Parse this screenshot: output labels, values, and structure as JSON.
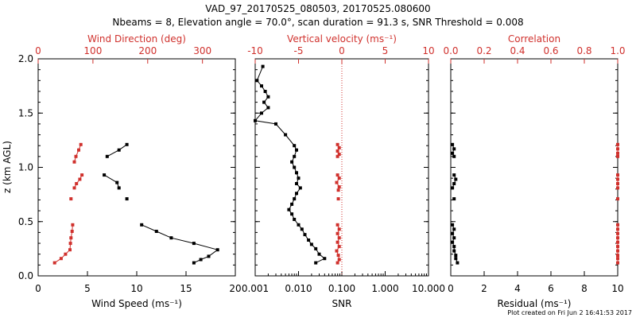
{
  "header": {
    "title": "VAD_97_20170525_080503, 20170525.080600",
    "subtitle": "Nbeams = 8, Elevation angle = 70.0°, scan duration = 91.3 s, SNR Threshold = 0.008"
  },
  "footer": {
    "plot_created": "Plot created on Fri Jun  2 16:41:53 2017"
  },
  "colors": {
    "black": "#000000",
    "red": "#d0312d"
  },
  "chart_data": [
    {
      "type": "line",
      "panel": "wind",
      "ylabel": "z (km AGL)",
      "ylim": [
        0,
        2
      ],
      "yticks": [
        "0.0",
        "0.5",
        "1.0",
        "1.5",
        "2.0"
      ],
      "xlabel": "Wind Speed (ms⁻¹)",
      "xlim": [
        0,
        20
      ],
      "xticks": [
        "0",
        "5",
        "10",
        "15",
        "20"
      ],
      "x2label": "Wind Direction (deg)",
      "x2lim": [
        0,
        360
      ],
      "x2ticks": [
        "0",
        "100",
        "200",
        "300"
      ],
      "series": [
        {
          "name": "Wind Speed",
          "color": "#000000",
          "segments": [
            [
              [
                9.0,
                1.21
              ],
              [
                8.2,
                1.16
              ],
              [
                7.0,
                1.1
              ]
            ],
            [
              [
                6.7,
                0.93
              ],
              [
                8.0,
                0.86
              ],
              [
                8.2,
                0.81
              ]
            ],
            [
              [
                9.0,
                0.71
              ]
            ],
            [
              [
                10.5,
                0.47
              ],
              [
                12.0,
                0.41
              ],
              [
                13.5,
                0.35
              ],
              [
                15.8,
                0.3
              ],
              [
                18.2,
                0.24
              ],
              [
                17.3,
                0.18
              ],
              [
                16.5,
                0.15
              ],
              [
                15.8,
                0.12
              ]
            ]
          ]
        },
        {
          "name": "Wind Direction",
          "color": "#d0312d",
          "axis": "top",
          "segments": [
            [
              [
                78,
                1.21
              ],
              [
                74,
                1.16
              ],
              [
                69,
                1.1
              ],
              [
                66,
                1.05
              ]
            ],
            [
              [
                80,
                0.93
              ],
              [
                76,
                0.89
              ],
              [
                70,
                0.85
              ],
              [
                66,
                0.81
              ]
            ],
            [
              [
                60,
                0.71
              ]
            ],
            [
              [
                63,
                0.47
              ],
              [
                62,
                0.41
              ],
              [
                60,
                0.35
              ],
              [
                59,
                0.3
              ],
              [
                58,
                0.24
              ],
              [
                50,
                0.2
              ],
              [
                42,
                0.16
              ],
              [
                30,
                0.12
              ]
            ]
          ]
        }
      ]
    },
    {
      "type": "line",
      "panel": "snr",
      "xlabel": "SNR",
      "xscale": "log",
      "xlim": [
        0.001,
        10
      ],
      "xticks": [
        "0.001",
        "0.010",
        "0.100",
        "1.000",
        "10.000"
      ],
      "x2label": "Vertical velocity (ms⁻¹)",
      "x2lim": [
        -10,
        10
      ],
      "x2ticks": [
        "-10",
        "-5",
        "0",
        "5",
        "10"
      ],
      "ylim": [
        0,
        2
      ],
      "series": [
        {
          "name": "SNR",
          "color": "#000000",
          "points": [
            [
              0.0015,
              1.93
            ],
            [
              0.0011,
              1.8
            ],
            [
              0.0014,
              1.75
            ],
            [
              0.0017,
              1.7
            ],
            [
              0.002,
              1.65
            ],
            [
              0.0016,
              1.6
            ],
            [
              0.002,
              1.55
            ],
            [
              0.0014,
              1.5
            ],
            [
              0.001,
              1.43
            ],
            [
              0.003,
              1.4
            ],
            [
              0.005,
              1.3
            ],
            [
              0.008,
              1.2
            ],
            [
              0.009,
              1.16
            ],
            [
              0.008,
              1.1
            ],
            [
              0.007,
              1.05
            ],
            [
              0.008,
              1.0
            ],
            [
              0.009,
              0.95
            ],
            [
              0.01,
              0.9
            ],
            [
              0.009,
              0.85
            ],
            [
              0.011,
              0.81
            ],
            [
              0.009,
              0.76
            ],
            [
              0.008,
              0.71
            ],
            [
              0.007,
              0.66
            ],
            [
              0.006,
              0.61
            ],
            [
              0.007,
              0.57
            ],
            [
              0.008,
              0.52
            ],
            [
              0.01,
              0.47
            ],
            [
              0.012,
              0.43
            ],
            [
              0.014,
              0.38
            ],
            [
              0.017,
              0.33
            ],
            [
              0.02,
              0.29
            ],
            [
              0.025,
              0.25
            ],
            [
              0.03,
              0.2
            ],
            [
              0.04,
              0.16
            ],
            [
              0.025,
              0.12
            ]
          ]
        },
        {
          "name": "Vertical velocity",
          "color": "#d0312d",
          "axis": "top",
          "segments": [
            [
              [
                -0.5,
                1.21
              ],
              [
                -0.3,
                1.18
              ],
              [
                -0.5,
                1.15
              ],
              [
                -0.3,
                1.12
              ],
              [
                -0.5,
                1.1
              ]
            ],
            [
              [
                -0.5,
                0.93
              ],
              [
                -0.3,
                0.9
              ],
              [
                -0.6,
                0.86
              ],
              [
                -0.3,
                0.82
              ],
              [
                -0.4,
                0.79
              ]
            ],
            [
              [
                -0.4,
                0.71
              ]
            ],
            [
              [
                -0.5,
                0.47
              ],
              [
                -0.3,
                0.43
              ],
              [
                -0.5,
                0.39
              ],
              [
                -0.3,
                0.35
              ],
              [
                -0.5,
                0.31
              ],
              [
                -0.3,
                0.27
              ],
              [
                -0.6,
                0.23
              ],
              [
                -0.4,
                0.19
              ],
              [
                -0.3,
                0.15
              ],
              [
                -0.5,
                0.12
              ]
            ]
          ]
        }
      ]
    },
    {
      "type": "line",
      "panel": "residual",
      "xlabel": "Residual (ms⁻¹)",
      "xlim": [
        0,
        10
      ],
      "xticks": [
        "0",
        "2",
        "4",
        "6",
        "8",
        "10"
      ],
      "x2label": "Correlation",
      "x2lim": [
        0,
        1
      ],
      "x2ticks": [
        "0.0",
        "0.2",
        "0.4",
        "0.6",
        "0.8",
        "1.0"
      ],
      "ylim": [
        0,
        2
      ],
      "series": [
        {
          "name": "Residual",
          "color": "#000000",
          "segments": [
            [
              [
                0.1,
                1.21
              ],
              [
                0.2,
                1.17
              ],
              [
                0.1,
                1.13
              ],
              [
                0.2,
                1.1
              ]
            ],
            [
              [
                0.2,
                0.93
              ],
              [
                0.3,
                0.89
              ],
              [
                0.2,
                0.85
              ],
              [
                0.1,
                0.81
              ]
            ],
            [
              [
                0.2,
                0.71
              ]
            ],
            [
              [
                0.1,
                0.47
              ],
              [
                0.2,
                0.43
              ],
              [
                0.1,
                0.39
              ],
              [
                0.2,
                0.35
              ],
              [
                0.1,
                0.31
              ],
              [
                0.2,
                0.27
              ],
              [
                0.2,
                0.23
              ],
              [
                0.3,
                0.19
              ],
              [
                0.3,
                0.16
              ],
              [
                0.4,
                0.12
              ]
            ]
          ]
        },
        {
          "name": "Correlation",
          "color": "#d0312d",
          "axis": "top",
          "segments": [
            [
              [
                1.0,
                1.21
              ],
              [
                1.0,
                1.17
              ],
              [
                1.0,
                1.13
              ],
              [
                1.0,
                1.1
              ]
            ],
            [
              [
                1.0,
                0.93
              ],
              [
                1.0,
                0.89
              ],
              [
                1.0,
                0.85
              ],
              [
                1.0,
                0.81
              ]
            ],
            [
              [
                1.0,
                0.71
              ]
            ],
            [
              [
                1.0,
                0.47
              ],
              [
                1.0,
                0.43
              ],
              [
                1.0,
                0.39
              ],
              [
                1.0,
                0.35
              ],
              [
                1.0,
                0.31
              ],
              [
                1.0,
                0.27
              ],
              [
                1.0,
                0.23
              ],
              [
                1.0,
                0.19
              ],
              [
                1.0,
                0.16
              ],
              [
                1.0,
                0.12
              ]
            ]
          ]
        }
      ]
    }
  ]
}
